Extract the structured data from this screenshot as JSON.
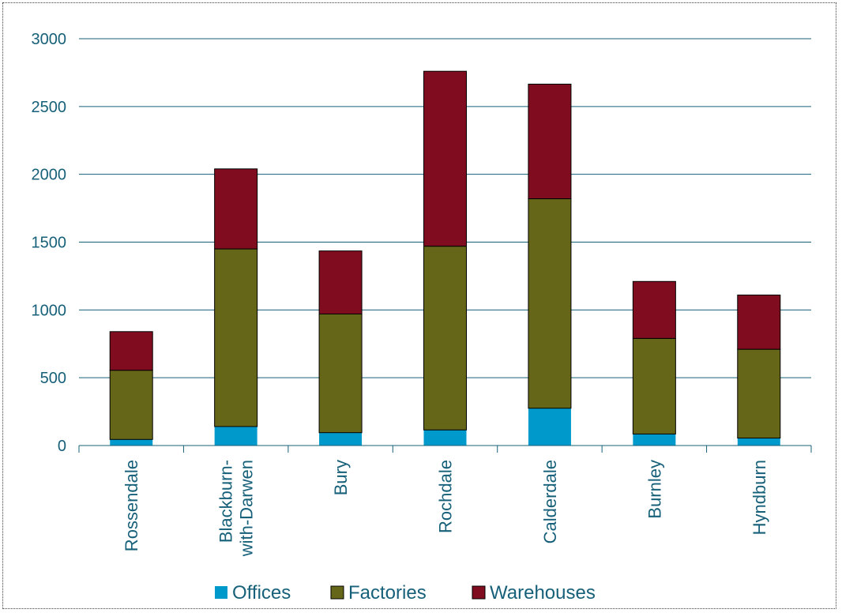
{
  "chart_data": {
    "type": "bar",
    "stacked": true,
    "title": "",
    "xlabel": "",
    "ylabel": "",
    "categories": [
      "Rossendale",
      "Blackburn-with-Darwen",
      "Bury",
      "Rochdale",
      "Calderdale",
      "Burnley",
      "Hyndburn"
    ],
    "category_label_lines": [
      [
        "Rossendale"
      ],
      [
        "Blackburn-",
        "with-Darwen"
      ],
      [
        "Bury"
      ],
      [
        "Rochdale"
      ],
      [
        "Calderdale"
      ],
      [
        "Burnley"
      ],
      [
        "Hyndburn"
      ]
    ],
    "series": [
      {
        "name": "Offices",
        "color": "#0099cc",
        "values": [
          45,
          140,
          95,
          115,
          275,
          85,
          55
        ]
      },
      {
        "name": "Factories",
        "color": "#666619",
        "values": [
          510,
          1310,
          875,
          1355,
          1545,
          705,
          655
        ]
      },
      {
        "name": "Warehouses",
        "color": "#800c1f",
        "values": [
          285,
          590,
          465,
          1290,
          845,
          420,
          400
        ]
      }
    ],
    "ylim": [
      0,
      3000
    ],
    "yticks": [
      0,
      500,
      1000,
      1500,
      2000,
      2500,
      3000
    ],
    "ytick_labels": [
      "0",
      "500",
      "1000",
      "1500",
      "2000",
      "2500",
      "3000"
    ],
    "grid": true,
    "legend_position": "bottom"
  }
}
